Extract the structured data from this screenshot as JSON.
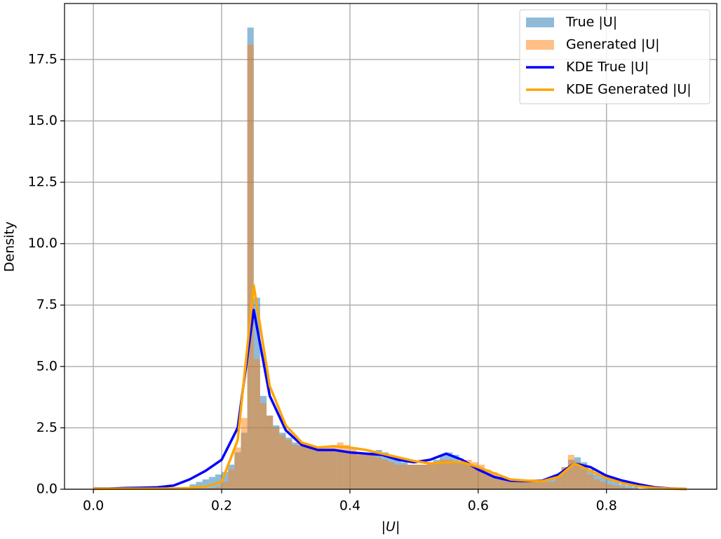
{
  "chart_data": {
    "type": "histogram",
    "xlabel": "|U|",
    "ylabel": "Density",
    "xlim": [
      -0.045,
      0.972
    ],
    "ylim": [
      0,
      19.78
    ],
    "xticks": [
      {
        "value": 0,
        "label": "0.0"
      },
      0.2,
      0.4,
      0.6,
      0.8
    ],
    "yticks": [
      {
        "value": 0,
        "label": "0.0"
      },
      2.5,
      {
        "value": 5,
        "label": "5.0"
      },
      7.5,
      {
        "value": 10,
        "label": "10.0"
      },
      12.5,
      {
        "value": 15,
        "label": "15.0"
      },
      17.5
    ],
    "grid": true,
    "legend": "upper right",
    "bins": [
      0.15,
      0.16,
      0.17,
      0.18,
      0.19,
      0.2,
      0.21,
      0.22,
      0.23,
      0.24,
      0.25,
      0.26,
      0.27,
      0.28,
      0.29,
      0.3,
      0.31,
      0.32,
      0.33,
      0.34,
      0.35,
      0.36,
      0.37,
      0.38,
      0.39,
      0.4,
      0.41,
      0.42,
      0.43,
      0.44,
      0.45,
      0.46,
      0.47,
      0.48,
      0.49,
      0.5,
      0.51,
      0.52,
      0.53,
      0.54,
      0.55,
      0.56,
      0.57,
      0.58,
      0.59,
      0.6,
      0.61,
      0.62,
      0.63,
      0.64,
      0.65,
      0.66,
      0.67,
      0.68,
      0.69,
      0.7,
      0.71,
      0.72,
      0.73,
      0.74,
      0.75,
      0.76,
      0.77,
      0.78,
      0.79,
      0.8,
      0.81,
      0.82,
      0.83,
      0.84,
      0.85
    ],
    "series": [
      {
        "name": "True |U|",
        "type": "histogram",
        "color": "#1f77b4",
        "alpha": 0.5,
        "values": [
          0.2,
          0.3,
          0.4,
          0.5,
          0.6,
          0.7,
          1.0,
          1.5,
          2.3,
          18.8,
          7.8,
          3.8,
          3.0,
          2.6,
          2.3,
          2.1,
          1.9,
          1.8,
          1.8,
          1.7,
          1.6,
          1.6,
          1.6,
          1.6,
          1.5,
          1.5,
          1.4,
          1.4,
          1.5,
          1.6,
          1.5,
          1.3,
          1.2,
          1.1,
          1.0,
          1.0,
          1.0,
          1.1,
          1.2,
          1.4,
          1.5,
          1.4,
          1.1,
          1.0,
          0.9,
          0.8,
          0.6,
          0.5,
          0.4,
          0.35,
          0.3,
          0.3,
          0.3,
          0.3,
          0.3,
          0.35,
          0.4,
          0.6,
          0.9,
          1.2,
          1.3,
          1.1,
          0.8,
          0.6,
          0.5,
          0.4,
          0.3,
          0.2,
          0.15,
          0.1
        ]
      },
      {
        "name": "Generated |U|",
        "type": "histogram",
        "color": "#ff7f0e",
        "alpha": 0.5,
        "values": [
          0,
          0,
          0,
          0.05,
          0.1,
          0.3,
          0.8,
          1.7,
          2.9,
          18.1,
          5.3,
          3.5,
          3.0,
          2.5,
          2.2,
          2.0,
          1.8,
          1.8,
          1.7,
          1.7,
          1.7,
          1.7,
          1.8,
          1.9,
          1.8,
          1.7,
          1.5,
          1.4,
          1.4,
          1.3,
          1.2,
          1.1,
          1.0,
          1.0,
          1.0,
          1.0,
          1.0,
          1.0,
          1.1,
          1.2,
          1.2,
          1.1,
          1.1,
          1.2,
          1.1,
          1.0,
          0.8,
          0.7,
          0.5,
          0.4,
          0.35,
          0.3,
          0.3,
          0.3,
          0.3,
          0.3,
          0.3,
          0.5,
          0.9,
          1.4,
          1.1,
          0.8,
          0.6,
          0.4,
          0.3,
          0.2,
          0.15,
          0.1,
          0.05,
          0
        ]
      },
      {
        "name": "KDE True |U|",
        "type": "line",
        "color": "#0000ff",
        "x": [
          0,
          0.025,
          0.05,
          0.075,
          0.1,
          0.125,
          0.15,
          0.175,
          0.2,
          0.225,
          0.25,
          0.275,
          0.3,
          0.325,
          0.35,
          0.375,
          0.4,
          0.425,
          0.45,
          0.475,
          0.5,
          0.525,
          0.55,
          0.575,
          0.6,
          0.625,
          0.65,
          0.675,
          0.7,
          0.725,
          0.75,
          0.775,
          0.8,
          0.825,
          0.85,
          0.875,
          0.9,
          0.925
        ],
        "values": [
          0.02,
          0.03,
          0.05,
          0.06,
          0.08,
          0.15,
          0.4,
          0.75,
          1.2,
          2.5,
          7.3,
          3.8,
          2.4,
          1.8,
          1.6,
          1.6,
          1.5,
          1.45,
          1.4,
          1.2,
          1.1,
          1.2,
          1.45,
          1.2,
          0.8,
          0.5,
          0.35,
          0.33,
          0.35,
          0.6,
          1.05,
          0.9,
          0.55,
          0.35,
          0.2,
          0.08,
          0.03,
          0.01
        ]
      },
      {
        "name": "KDE Generated |U|",
        "type": "line",
        "color": "#ffa500",
        "x": [
          0,
          0.025,
          0.05,
          0.075,
          0.1,
          0.125,
          0.15,
          0.175,
          0.2,
          0.225,
          0.25,
          0.275,
          0.3,
          0.325,
          0.35,
          0.375,
          0.4,
          0.425,
          0.45,
          0.475,
          0.5,
          0.525,
          0.55,
          0.575,
          0.6,
          0.625,
          0.65,
          0.675,
          0.7,
          0.725,
          0.75,
          0.775,
          0.8,
          0.825,
          0.85,
          0.875,
          0.9,
          0.925
        ],
        "values": [
          0.01,
          0.02,
          0.02,
          0.02,
          0.02,
          0.03,
          0.05,
          0.1,
          0.3,
          2.0,
          8.3,
          4.2,
          2.6,
          1.9,
          1.7,
          1.75,
          1.7,
          1.6,
          1.45,
          1.3,
          1.15,
          1.05,
          1.1,
          1.1,
          0.9,
          0.65,
          0.4,
          0.35,
          0.33,
          0.5,
          1.05,
          0.75,
          0.45,
          0.25,
          0.12,
          0.05,
          0.02,
          0.01
        ]
      }
    ]
  }
}
